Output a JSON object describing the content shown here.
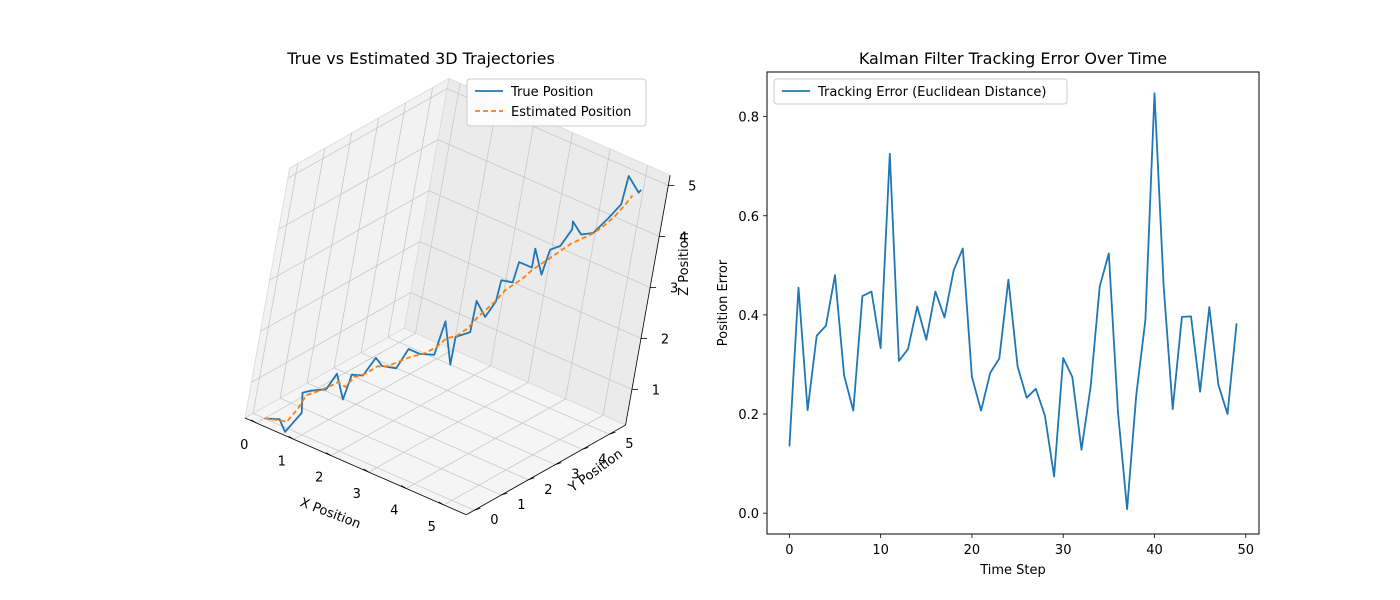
{
  "colors": {
    "true_series": "#1f77b4",
    "estimated_series": "#ff7f0e",
    "error_series": "#1f77b4"
  },
  "chart_data": [
    {
      "type": "line",
      "projection": "3d",
      "title": "True vs Estimated 3D Trajectories",
      "xlabel": "X Position",
      "ylabel": "Y Position",
      "zlabel": "Z Position",
      "xlim": [
        -0.3,
        5.6
      ],
      "ylim": [
        -0.3,
        5.6
      ],
      "zlim": [
        0.3,
        5.2
      ],
      "xticks": [
        0,
        1,
        2,
        3,
        4,
        5
      ],
      "yticks": [
        0,
        1,
        2,
        3,
        4,
        5
      ],
      "zticks": [
        1,
        2,
        3,
        4,
        5
      ],
      "grid": true,
      "legend_position": "top-right",
      "series": [
        {
          "name": "True Position",
          "style": "solid",
          "points": [
            [
              0.0,
              0.0,
              0.3
            ],
            [
              0.35,
              0.05,
              0.38
            ],
            [
              0.45,
              0.2,
              0.12
            ],
            [
              0.6,
              0.5,
              0.45
            ],
            [
              0.5,
              0.55,
              0.8
            ],
            [
              0.75,
              0.45,
              0.95
            ],
            [
              0.95,
              0.75,
              0.95
            ],
            [
              1.0,
              1.0,
              1.2
            ],
            [
              1.35,
              0.85,
              0.85
            ],
            [
              1.25,
              1.2,
              1.2
            ],
            [
              1.5,
              1.25,
              1.25
            ],
            [
              1.65,
              1.4,
              1.6
            ],
            [
              1.9,
              1.3,
              1.55
            ],
            [
              2.05,
              1.65,
              1.45
            ],
            [
              2.15,
              1.85,
              1.8
            ],
            [
              2.45,
              1.85,
              1.8
            ],
            [
              2.75,
              1.95,
              1.85
            ],
            [
              2.7,
              2.25,
              2.4
            ],
            [
              2.95,
              2.35,
              1.6
            ],
            [
              2.9,
              2.45,
              2.1
            ],
            [
              3.3,
              2.35,
              2.35
            ],
            [
              3.05,
              2.8,
              2.75
            ],
            [
              3.3,
              2.85,
              2.5
            ],
            [
              3.35,
              3.1,
              2.75
            ],
            [
              3.3,
              3.25,
              3.1
            ],
            [
              3.65,
              3.15,
              3.2
            ],
            [
              3.45,
              3.6,
              3.4
            ],
            [
              3.85,
              3.5,
              3.45
            ],
            [
              3.7,
              3.75,
              3.7
            ],
            [
              4.0,
              3.7,
              3.3
            ],
            [
              3.95,
              3.95,
              3.7
            ],
            [
              4.25,
              3.85,
              3.9
            ],
            [
              4.35,
              4.05,
              4.2
            ],
            [
              4.15,
              4.35,
              4.2
            ],
            [
              4.5,
              4.2,
              4.1
            ],
            [
              4.7,
              4.35,
              4.15
            ],
            [
              4.85,
              4.6,
              4.4
            ],
            [
              5.15,
              4.55,
              4.8
            ],
            [
              5.0,
              4.9,
              5.2
            ],
            [
              5.35,
              4.85,
              5.0
            ],
            [
              5.25,
              5.1,
              4.95
            ]
          ]
        },
        {
          "name": "Estimated Position",
          "style": "dashed",
          "points": [
            [
              0.0,
              0.0,
              0.3
            ],
            [
              0.3,
              0.05,
              0.35
            ],
            [
              0.45,
              0.2,
              0.32
            ],
            [
              0.55,
              0.4,
              0.55
            ],
            [
              0.6,
              0.55,
              0.78
            ],
            [
              0.8,
              0.55,
              0.9
            ],
            [
              0.95,
              0.8,
              0.98
            ],
            [
              1.1,
              0.95,
              1.08
            ],
            [
              1.3,
              0.95,
              1.05
            ],
            [
              1.35,
              1.15,
              1.2
            ],
            [
              1.55,
              1.25,
              1.3
            ],
            [
              1.75,
              1.35,
              1.48
            ],
            [
              1.95,
              1.45,
              1.52
            ],
            [
              2.1,
              1.65,
              1.6
            ],
            [
              2.3,
              1.8,
              1.72
            ],
            [
              2.5,
              1.9,
              1.8
            ],
            [
              2.7,
              2.05,
              1.95
            ],
            [
              2.8,
              2.25,
              2.1
            ],
            [
              2.95,
              2.4,
              2.15
            ],
            [
              3.1,
              2.55,
              2.3
            ],
            [
              3.2,
              2.7,
              2.5
            ],
            [
              3.3,
              2.85,
              2.65
            ],
            [
              3.4,
              3.0,
              2.8
            ],
            [
              3.5,
              3.15,
              3.0
            ],
            [
              3.6,
              3.3,
              3.1
            ],
            [
              3.75,
              3.4,
              3.25
            ],
            [
              3.85,
              3.55,
              3.4
            ],
            [
              3.95,
              3.7,
              3.5
            ],
            [
              4.05,
              3.85,
              3.6
            ],
            [
              4.2,
              3.95,
              3.75
            ],
            [
              4.35,
              4.1,
              3.9
            ],
            [
              4.5,
              4.25,
              4.0
            ],
            [
              4.65,
              4.4,
              4.1
            ],
            [
              4.8,
              4.55,
              4.25
            ],
            [
              4.95,
              4.7,
              4.45
            ],
            [
              5.1,
              4.8,
              4.7
            ],
            [
              5.15,
              4.95,
              4.85
            ]
          ]
        }
      ]
    },
    {
      "type": "line",
      "title": "Kalman Filter Tracking Error Over Time",
      "xlabel": "Time Step",
      "ylabel": "Position Error",
      "xlim": [
        -2.45,
        51.45
      ],
      "ylim": [
        -0.042,
        0.89
      ],
      "xticks": [
        0,
        10,
        20,
        30,
        40,
        50
      ],
      "yticks": [
        0.0,
        0.2,
        0.4,
        0.6,
        0.8
      ],
      "yticklabels": [
        "0.0",
        "0.2",
        "0.4",
        "0.6",
        "0.8"
      ],
      "grid": false,
      "legend_position": "top-left",
      "series": [
        {
          "name": "Tracking Error (Euclidean Distance)",
          "x": [
            0,
            1,
            2,
            3,
            4,
            5,
            6,
            7,
            8,
            9,
            10,
            11,
            12,
            13,
            14,
            15,
            16,
            17,
            18,
            19,
            20,
            21,
            22,
            23,
            24,
            25,
            26,
            27,
            28,
            29,
            30,
            31,
            32,
            33,
            34,
            35,
            36,
            37,
            38,
            39,
            40,
            41,
            42,
            43,
            44,
            45,
            46,
            47,
            48,
            49
          ],
          "values": [
            0.135,
            0.455,
            0.208,
            0.358,
            0.378,
            0.48,
            0.278,
            0.207,
            0.438,
            0.447,
            0.333,
            0.725,
            0.307,
            0.331,
            0.417,
            0.35,
            0.447,
            0.395,
            0.49,
            0.534,
            0.275,
            0.207,
            0.283,
            0.312,
            0.471,
            0.296,
            0.233,
            0.251,
            0.197,
            0.074,
            0.313,
            0.275,
            0.128,
            0.255,
            0.457,
            0.524,
            0.203,
            0.008,
            0.237,
            0.39,
            0.847,
            0.46,
            0.21,
            0.396,
            0.397,
            0.245,
            0.416,
            0.259,
            0.2,
            0.383
          ]
        }
      ]
    }
  ]
}
